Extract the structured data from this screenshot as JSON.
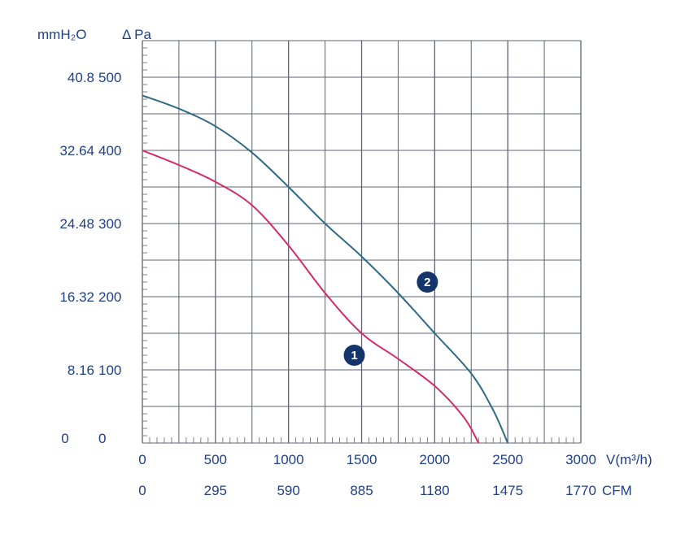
{
  "chart_data": {
    "type": "line",
    "x_axis_primary": {
      "label": "V(m³/h)",
      "ticks": [
        "0",
        "500",
        "1000",
        "1500",
        "2000",
        "2500",
        "3000"
      ],
      "range": [
        0,
        3000
      ]
    },
    "x_axis_secondary": {
      "label": "CFM",
      "ticks": [
        "0",
        "295",
        "590",
        "885",
        "1180",
        "1475",
        "1770"
      ]
    },
    "y_axis_primary": {
      "label": "Δ Pa",
      "ticks": [
        "0",
        "100",
        "200",
        "300",
        "400",
        "500"
      ],
      "range": [
        0,
        550
      ]
    },
    "y_axis_secondary": {
      "label": "mmH₂O",
      "ticks": [
        "0",
        "8.16",
        "16.32",
        "24.48",
        "32.64",
        "40.8"
      ]
    },
    "grid": true,
    "series": [
      {
        "name": "1",
        "color": "#d62a6a",
        "points": [
          [
            0,
            400
          ],
          [
            250,
            380
          ],
          [
            500,
            357
          ],
          [
            750,
            325
          ],
          [
            1000,
            270
          ],
          [
            1250,
            205
          ],
          [
            1500,
            150
          ],
          [
            1750,
            115
          ],
          [
            2000,
            78
          ],
          [
            2200,
            35
          ],
          [
            2300,
            0
          ]
        ]
      },
      {
        "name": "2",
        "color": "#2f6b85",
        "points": [
          [
            0,
            475
          ],
          [
            250,
            457
          ],
          [
            500,
            433
          ],
          [
            750,
            397
          ],
          [
            1000,
            350
          ],
          [
            1250,
            300
          ],
          [
            1500,
            255
          ],
          [
            1750,
            205
          ],
          [
            2000,
            150
          ],
          [
            2250,
            95
          ],
          [
            2400,
            45
          ],
          [
            2500,
            0
          ]
        ]
      }
    ],
    "labels": [
      {
        "text": "1",
        "at": [
          1450,
          120
        ]
      },
      {
        "text": "2",
        "at": [
          1950,
          220
        ]
      }
    ]
  }
}
